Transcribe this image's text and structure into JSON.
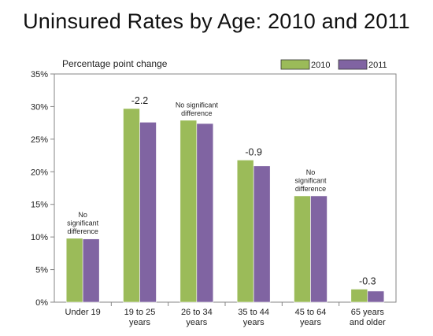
{
  "chart_data": {
    "type": "bar",
    "title": "Uninsured Rates by Age: 2010 and 2011",
    "subtitle": "Percentage point change",
    "categories": [
      [
        "Under 19"
      ],
      [
        "19 to 25",
        "years"
      ],
      [
        "26 to 34",
        "years"
      ],
      [
        "35 to 44",
        "years"
      ],
      [
        "45 to 64",
        "years"
      ],
      [
        "65 years",
        "and older"
      ]
    ],
    "series": [
      {
        "name": "2010",
        "color": "#9bbb59",
        "values": [
          9.8,
          29.7,
          27.9,
          21.8,
          16.3,
          2.0
        ]
      },
      {
        "name": "2011",
        "color": "#8064a2",
        "values": [
          9.7,
          27.6,
          27.4,
          20.9,
          16.3,
          1.7
        ]
      }
    ],
    "annotations": [
      [
        "No",
        "significant",
        "difference"
      ],
      [
        "-2.2"
      ],
      [
        "No significant",
        "difference"
      ],
      [
        "-0.9"
      ],
      [
        "No",
        "significant",
        "difference"
      ],
      [
        "-0.3"
      ]
    ],
    "ylim": [
      0,
      35
    ],
    "yticks": [
      0,
      5,
      10,
      15,
      20,
      25,
      30,
      35
    ],
    "ytick_labels": [
      "0%",
      "5%",
      "10%",
      "15%",
      "20%",
      "25%",
      "30%",
      "35%"
    ],
    "legend": "top-right",
    "grid": false
  }
}
